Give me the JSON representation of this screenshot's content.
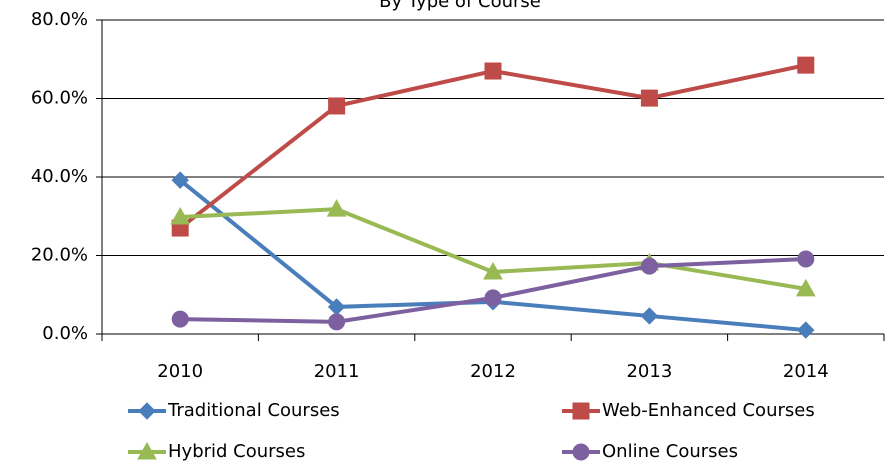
{
  "chart_data": {
    "type": "line",
    "title": "By Type of Course",
    "categories": [
      "2010",
      "2011",
      "2012",
      "2013",
      "2014"
    ],
    "series": [
      {
        "name": "Traditional Courses",
        "color": "#4a7ebb",
        "marker": "diamond",
        "values": [
          39.2,
          6.9,
          8.2,
          4.6,
          1.0
        ]
      },
      {
        "name": "Web-Enhanced Courses",
        "color": "#be4b48",
        "marker": "square",
        "values": [
          27.0,
          58.1,
          67.0,
          60.1,
          68.5
        ]
      },
      {
        "name": "Hybrid Courses",
        "color": "#98b954",
        "marker": "triangle",
        "values": [
          29.8,
          31.8,
          15.8,
          18.1,
          11.5
        ]
      },
      {
        "name": "Online Courses",
        "color": "#7d60a0",
        "marker": "circle",
        "values": [
          3.8,
          3.1,
          9.2,
          17.3,
          19.1
        ]
      }
    ],
    "ylim": [
      0,
      80
    ],
    "yticks": [
      {
        "value": 0,
        "label": "0.0%"
      },
      {
        "value": 20,
        "label": "20.0%"
      },
      {
        "value": 40,
        "label": "40.0%"
      },
      {
        "value": 60,
        "label": "60.0%"
      },
      {
        "value": 80,
        "label": "80.0%"
      }
    ],
    "grid": true,
    "legend": "bottom"
  }
}
